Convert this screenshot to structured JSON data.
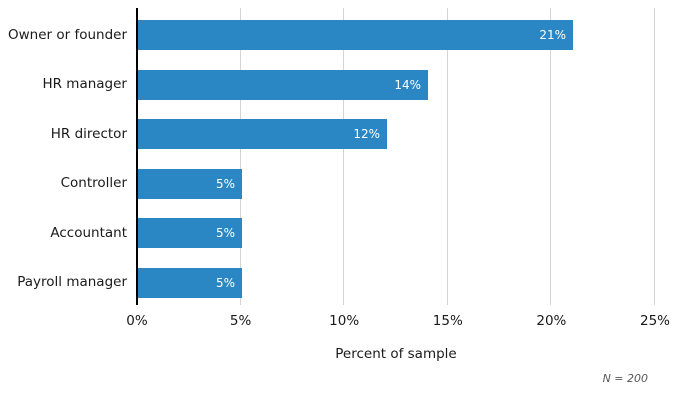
{
  "chart_data": {
    "type": "bar",
    "orientation": "horizontal",
    "title": "",
    "categories": [
      "Owner or founder",
      "HR manager",
      "HR director",
      "Controller",
      "Accountant",
      "Payroll manager"
    ],
    "values": [
      21,
      14,
      12,
      5,
      5,
      5
    ],
    "value_labels": [
      "21%",
      "14%",
      "12%",
      "5%",
      "5%",
      "5%"
    ],
    "xlabel": "Percent of sample",
    "ylabel": "",
    "xlim": [
      0,
      25
    ],
    "x_tick_values": [
      0,
      5,
      10,
      15,
      20,
      25
    ],
    "x_tick_labels": [
      "0%",
      "5%",
      "10%",
      "15%",
      "20%",
      "25%"
    ],
    "grid": true,
    "legend": false,
    "note": "N = 200",
    "colors": {
      "bar": "#2b87c3",
      "gridline": "#d4d4d4",
      "axis_line": "#000000",
      "tick_text": "#1a1a1a",
      "value_text": "#ffffff",
      "note_text": "#595959",
      "background": "#ffffff"
    }
  }
}
